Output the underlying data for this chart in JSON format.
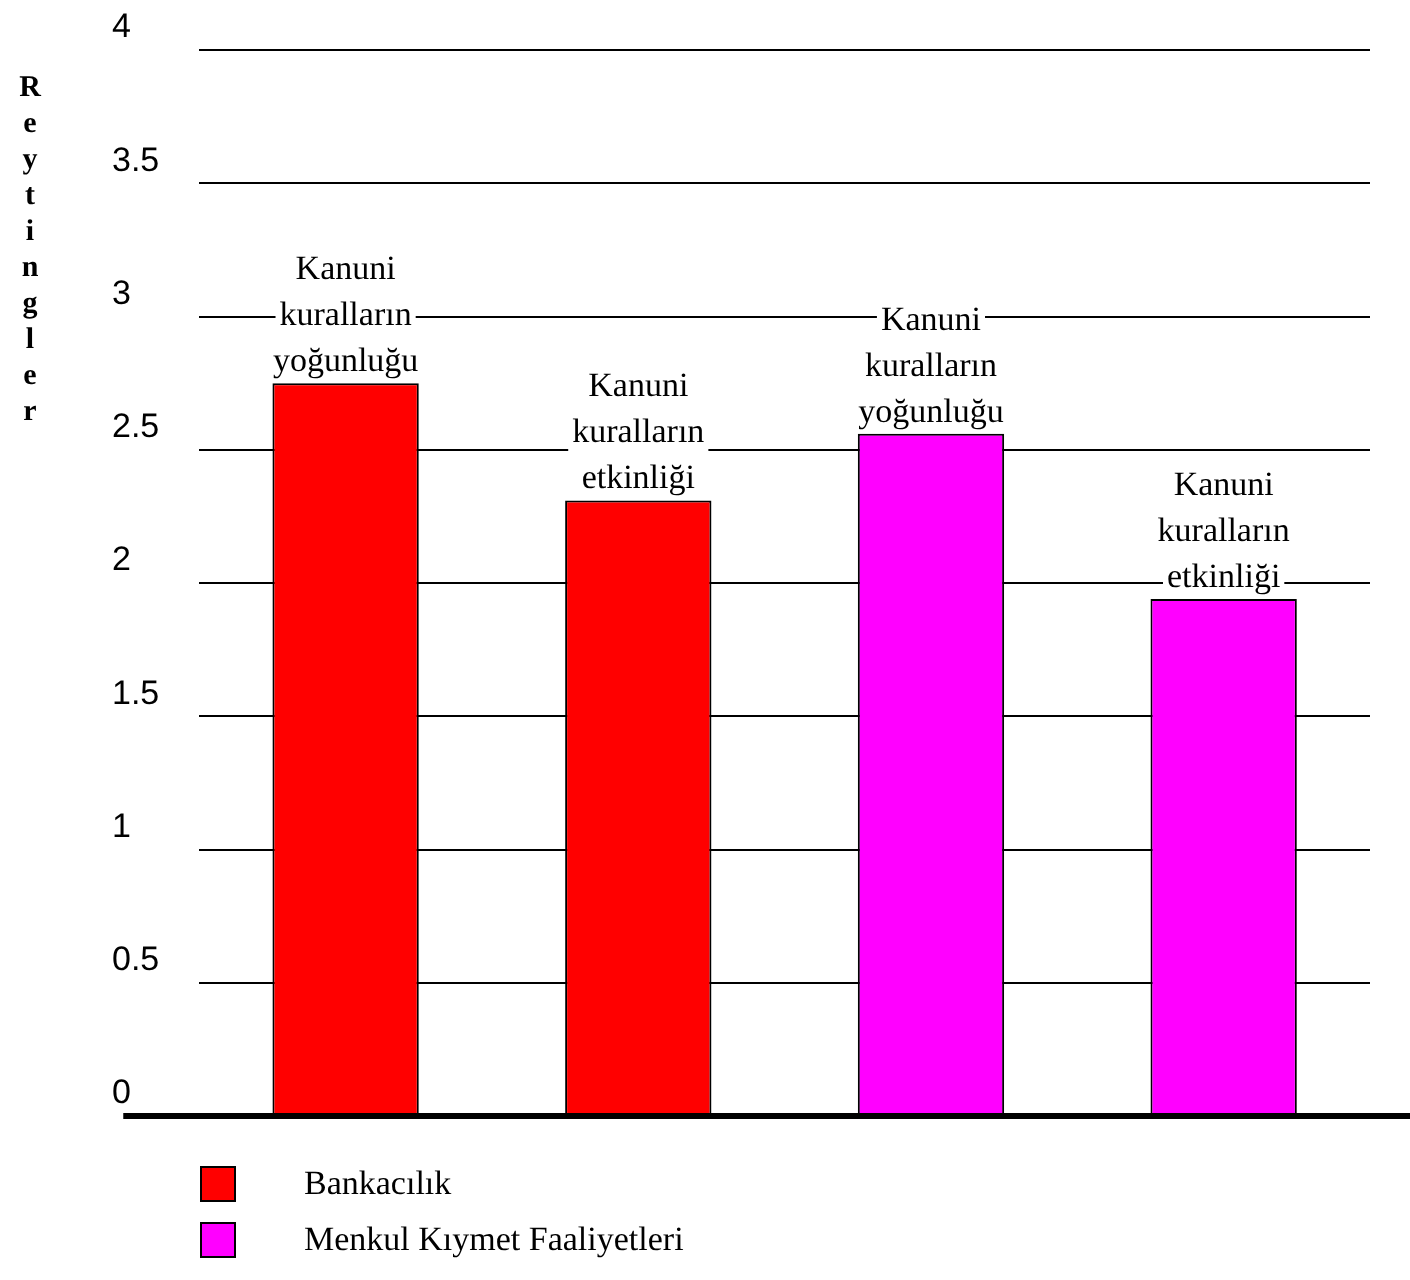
{
  "chart_data": {
    "type": "bar",
    "ylabel": "Reytingler",
    "categories": [
      "Kanuni kuralların yoğunluğu",
      "Kanuni kuralların etkinliği",
      "Kanuni kuralların yoğunluğu",
      "Kanuni kuralların etkinliği"
    ],
    "series": [
      {
        "name": "Bankacılık",
        "color": "#ff0000",
        "values": [
          2.75,
          2.31,
          null,
          null
        ]
      },
      {
        "name": "Menkul Kıymet Faaliyetleri",
        "color": "#ff00ff",
        "values": [
          null,
          null,
          2.56,
          1.94
        ]
      }
    ],
    "ylim": [
      0,
      4
    ],
    "yticks": [
      0,
      0.5,
      1,
      1.5,
      2,
      2.5,
      3,
      3.5,
      4
    ],
    "grid": "y",
    "legend": "bottom left"
  }
}
